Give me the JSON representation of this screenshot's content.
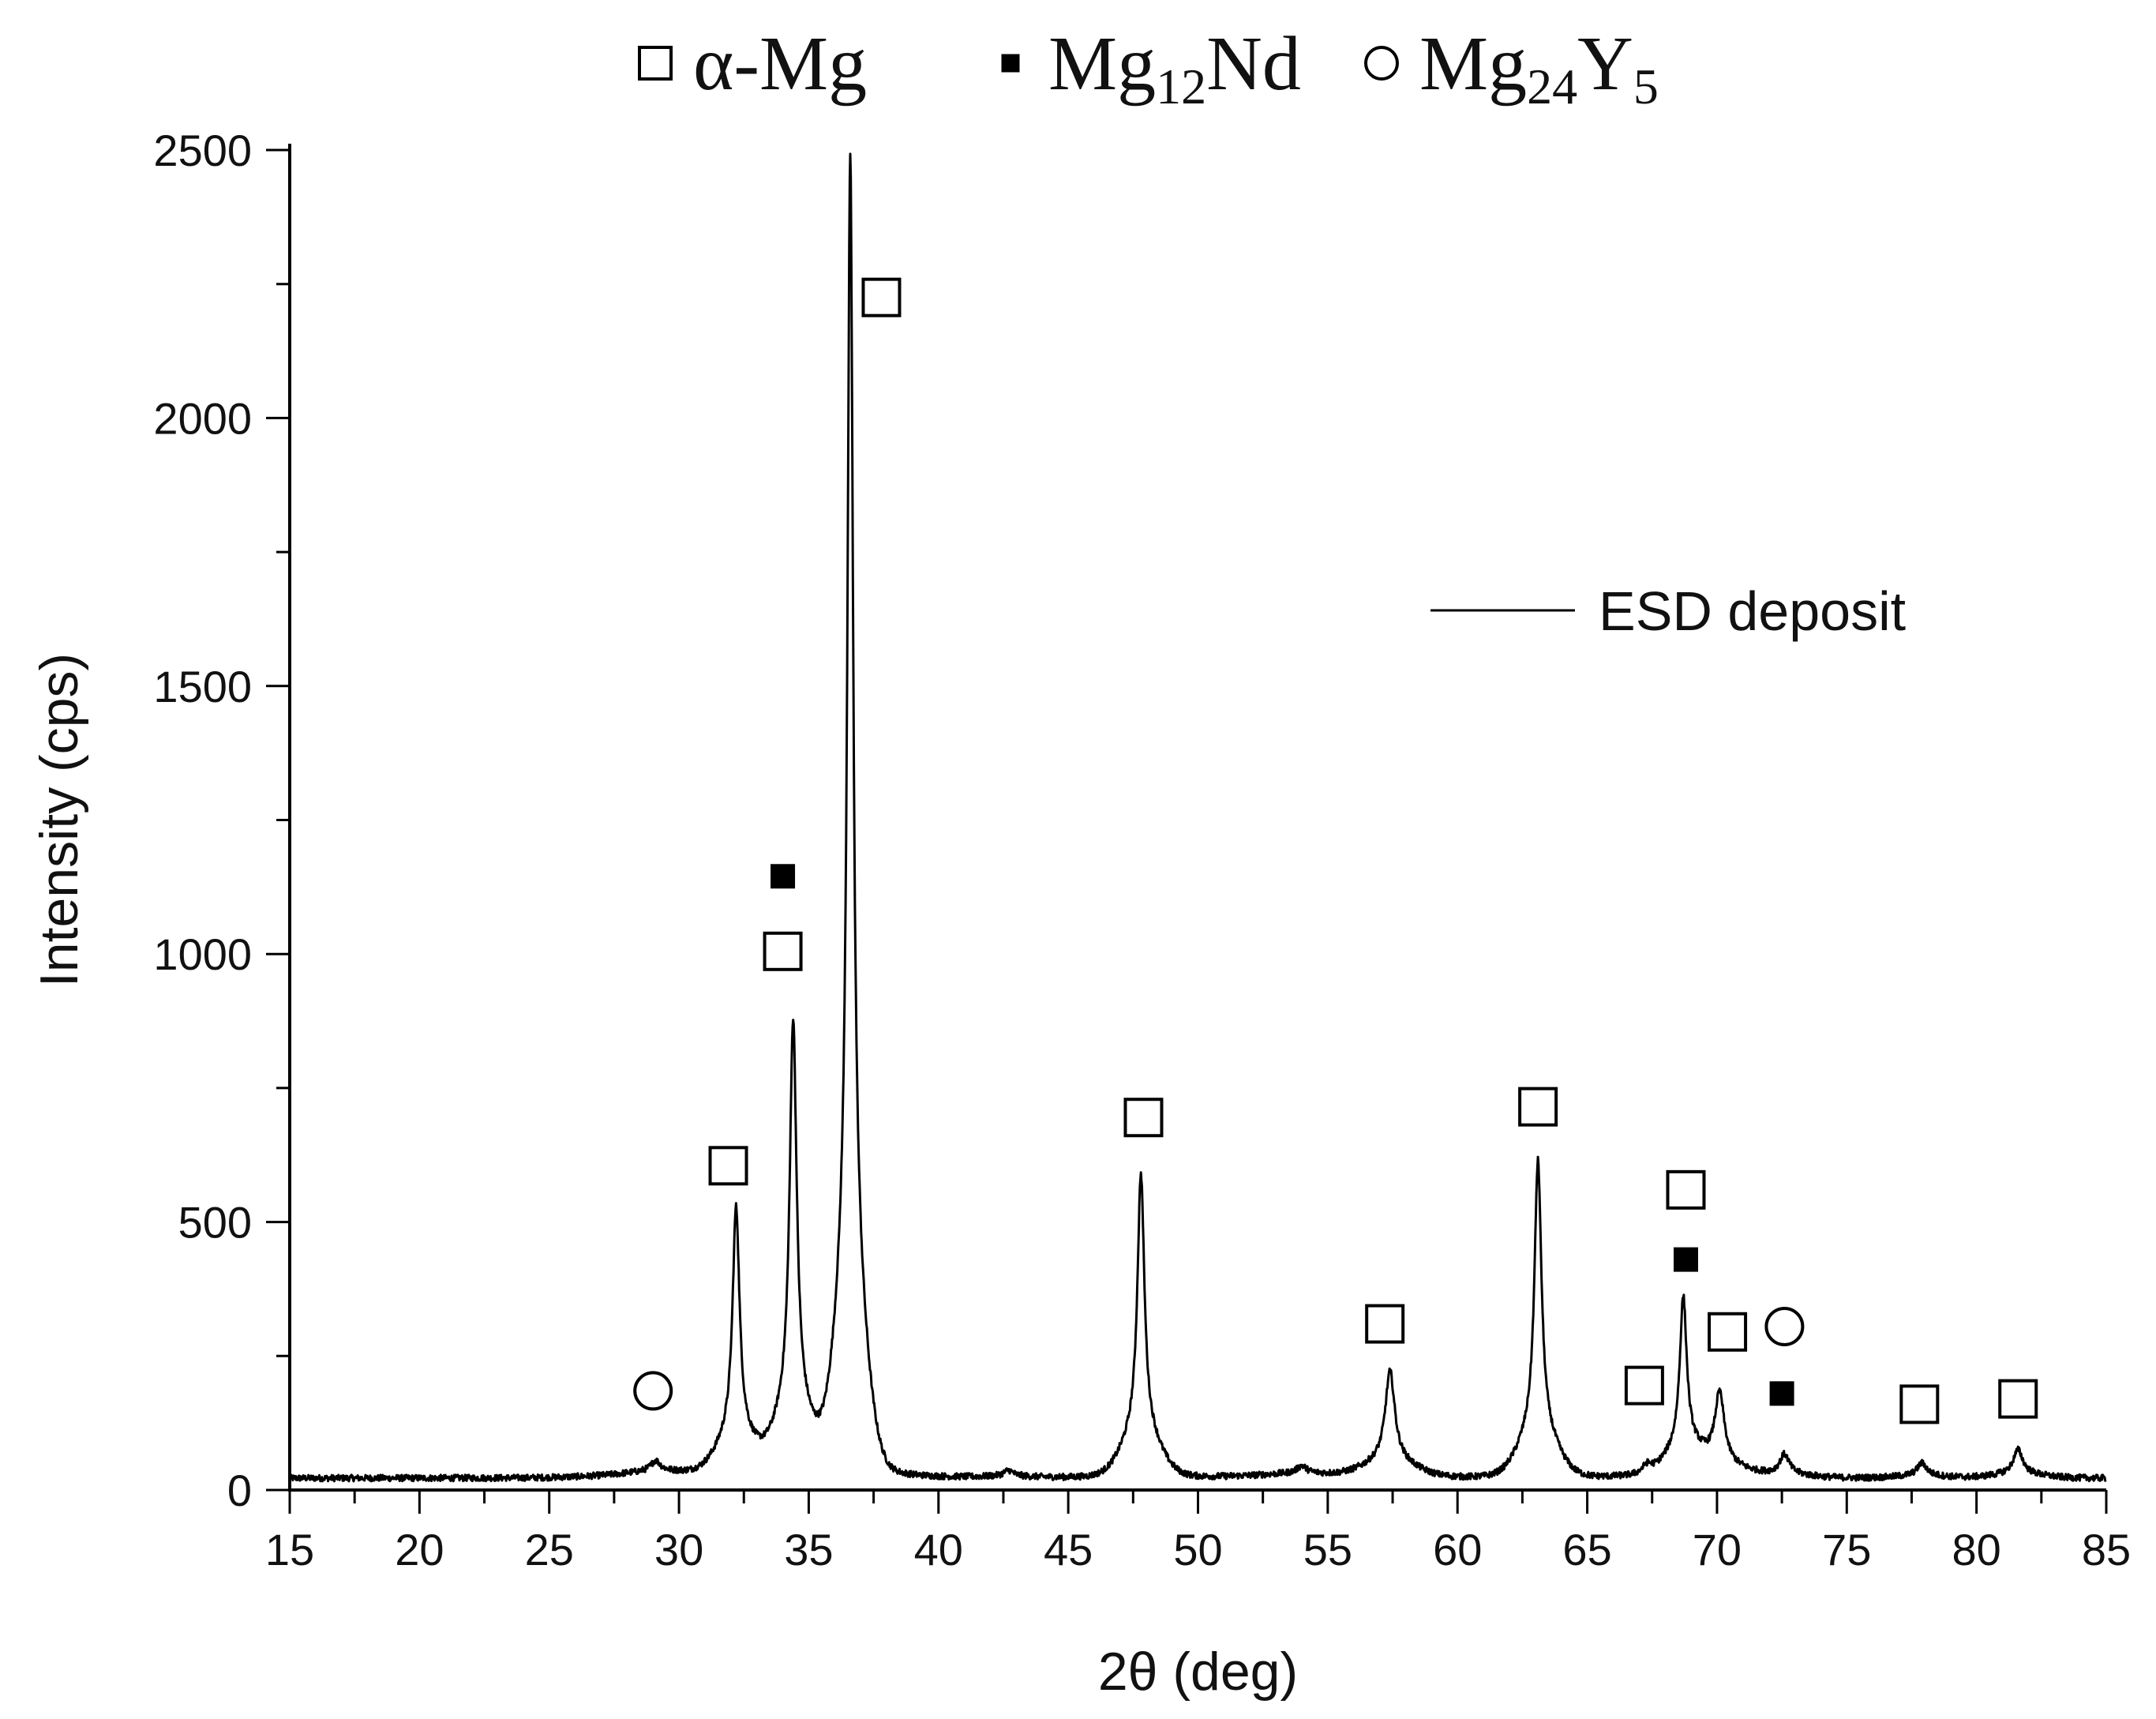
{
  "chart_data": {
    "type": "line",
    "xlabel": "2θ (deg)",
    "ylabel": "Intensity (cps)",
    "xlim": [
      15,
      85
    ],
    "ylim": [
      0,
      2500
    ],
    "xticks": [
      15,
      20,
      25,
      30,
      35,
      40,
      45,
      50,
      55,
      60,
      65,
      70,
      75,
      80,
      85
    ],
    "yticks": [
      0,
      500,
      1000,
      1500,
      2000,
      2500
    ],
    "grid": false,
    "series": [
      {
        "name": "ESD deposit",
        "baseline": 22,
        "peaks": [
          {
            "x": 29.1,
            "y": 45
          },
          {
            "x": 32.2,
            "y": 520
          },
          {
            "x": 34.4,
            "y": 870
          },
          {
            "x": 36.6,
            "y": 2490
          },
          {
            "x": 42.7,
            "y": 35
          },
          {
            "x": 47.8,
            "y": 590
          },
          {
            "x": 54.0,
            "y": 38
          },
          {
            "x": 57.4,
            "y": 220
          },
          {
            "x": 63.1,
            "y": 615
          },
          {
            "x": 67.3,
            "y": 40
          },
          {
            "x": 68.7,
            "y": 350
          },
          {
            "x": 70.1,
            "y": 175
          },
          {
            "x": 72.6,
            "y": 65
          },
          {
            "x": 77.9,
            "y": 50
          },
          {
            "x": 81.6,
            "y": 75
          }
        ]
      }
    ],
    "phase_legend": [
      {
        "symbol": "open-square",
        "label": "α-Mg",
        "formula": [
          [
            "α-Mg",
            ""
          ]
        ]
      },
      {
        "symbol": "filled-square",
        "label": "Mg12Nd",
        "formula": [
          [
            "Mg",
            ""
          ],
          [
            "12",
            "sub"
          ],
          [
            "Nd",
            ""
          ]
        ]
      },
      {
        "symbol": "open-circle",
        "label": "Mg24Y5",
        "formula": [
          [
            "Mg",
            ""
          ],
          [
            "24",
            "sub"
          ],
          [
            "Y",
            ""
          ],
          [
            "5",
            "sub"
          ]
        ]
      }
    ],
    "series_legend": {
      "label": "ESD deposit",
      "position": "upper-right"
    },
    "peak_markers": [
      {
        "phase": "Mg24Y5",
        "symbol": "open-circle",
        "x": 29.0,
        "y": 185
      },
      {
        "phase": "α-Mg",
        "symbol": "open-square",
        "x": 31.9,
        "y": 605
      },
      {
        "phase": "α-Mg",
        "symbol": "open-square",
        "x": 34.0,
        "y": 1005
      },
      {
        "phase": "Mg12Nd",
        "symbol": "filled-square",
        "x": 34.0,
        "y": 1145
      },
      {
        "phase": "α-Mg",
        "symbol": "open-square",
        "x": 37.8,
        "y": 2225
      },
      {
        "phase": "α-Mg",
        "symbol": "open-square",
        "x": 47.9,
        "y": 695
      },
      {
        "phase": "α-Mg",
        "symbol": "open-square",
        "x": 57.2,
        "y": 310
      },
      {
        "phase": "α-Mg",
        "symbol": "open-square",
        "x": 63.1,
        "y": 715
      },
      {
        "phase": "α-Mg",
        "symbol": "open-square",
        "x": 67.2,
        "y": 195
      },
      {
        "phase": "α-Mg",
        "symbol": "open-square",
        "x": 68.8,
        "y": 560
      },
      {
        "phase": "Mg12Nd",
        "symbol": "filled-square",
        "x": 68.8,
        "y": 430
      },
      {
        "phase": "α-Mg",
        "symbol": "open-square",
        "x": 70.4,
        "y": 295
      },
      {
        "phase": "Mg24Y5",
        "symbol": "open-circle",
        "x": 72.6,
        "y": 305
      },
      {
        "phase": "Mg12Nd",
        "symbol": "filled-square",
        "x": 72.5,
        "y": 180
      },
      {
        "phase": "α-Mg",
        "symbol": "open-square",
        "x": 77.8,
        "y": 160
      },
      {
        "phase": "α-Mg",
        "symbol": "open-square",
        "x": 81.6,
        "y": 170
      }
    ]
  }
}
